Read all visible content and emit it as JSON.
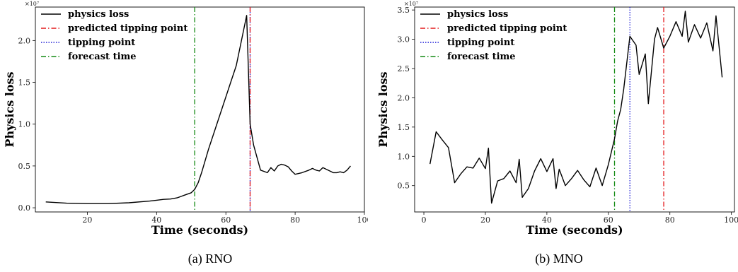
{
  "legend_labels": {
    "physics_loss": "physics loss",
    "predicted_tipping_point": "predicted tipping point",
    "tipping_point": "tipping point",
    "forecast_time": "forecast time"
  },
  "colors": {
    "physics_loss": "#000000",
    "predicted_tipping_point": "#e41a1c",
    "tipping_point": "#1f1fd6",
    "forecast_time": "#138a13"
  },
  "panels": [
    {
      "caption": "(a) RNO",
      "xlabel": "Time (seconds)",
      "ylabel": "Physics loss",
      "exponent": "×10⁷"
    },
    {
      "caption": "(b) MNO",
      "xlabel": "Time (seconds)",
      "ylabel": "Physics loss",
      "exponent": "×10⁷"
    }
  ],
  "chart_data": [
    {
      "type": "line",
      "title": "",
      "xlabel": "Time (seconds)",
      "ylabel": "Physics loss",
      "y_scale_multiplier": "1e7",
      "xlim": [
        5,
        100
      ],
      "ylim": [
        -0.05,
        2.4
      ],
      "xticks": [
        20,
        40,
        60,
        80,
        100
      ],
      "yticks": [
        0.0,
        0.5,
        1.0,
        1.5,
        2.0
      ],
      "ytick_labels": [
        "0.0",
        "0.5",
        "1.0",
        "1.5",
        "2.0"
      ],
      "grid": false,
      "legend": "top-left",
      "series": [
        {
          "name": "physics loss",
          "style": "solid",
          "x": [
            8,
            14,
            20,
            26,
            32,
            38,
            40,
            42,
            44,
            46,
            48,
            50,
            51,
            52,
            53,
            55,
            57,
            59,
            61,
            63,
            65,
            66,
            67,
            68,
            70,
            72,
            73,
            74,
            75,
            76,
            77,
            78,
            79,
            80,
            81,
            82,
            84,
            85,
            86,
            87,
            88,
            89,
            90,
            91,
            92,
            93,
            94,
            95,
            96
          ],
          "values": [
            0.07,
            0.055,
            0.05,
            0.05,
            0.06,
            0.08,
            0.09,
            0.1,
            0.105,
            0.12,
            0.15,
            0.18,
            0.22,
            0.3,
            0.42,
            0.7,
            0.95,
            1.2,
            1.45,
            1.7,
            2.1,
            2.3,
            1.0,
            0.75,
            0.45,
            0.42,
            0.48,
            0.44,
            0.5,
            0.52,
            0.51,
            0.49,
            0.44,
            0.4,
            0.41,
            0.42,
            0.45,
            0.47,
            0.45,
            0.44,
            0.48,
            0.46,
            0.44,
            0.42,
            0.42,
            0.43,
            0.42,
            0.45,
            0.5
          ]
        }
      ],
      "vlines": [
        {
          "name": "forecast time",
          "x": 51,
          "style": "dashdot"
        },
        {
          "name": "tipping point",
          "x": 67,
          "style": "dotted"
        },
        {
          "name": "predicted tipping point",
          "x": 67,
          "style": "dashdot"
        }
      ]
    },
    {
      "type": "line",
      "title": "",
      "xlabel": "Time (seconds)",
      "ylabel": "Physics loss",
      "y_scale_multiplier": "1e7",
      "xlim": [
        -3,
        101
      ],
      "ylim": [
        0.05,
        3.55
      ],
      "xticks": [
        0,
        20,
        40,
        60,
        80,
        100
      ],
      "yticks": [
        0.5,
        1.0,
        1.5,
        2.0,
        2.5,
        3.0,
        3.5
      ],
      "ytick_labels": [
        "0.5",
        "1.0",
        "1.5",
        "2.0",
        "2.5",
        "3.0",
        "3.5"
      ],
      "grid": false,
      "legend": "top-left",
      "series": [
        {
          "name": "physics loss",
          "style": "solid",
          "x": [
            2,
            4,
            6,
            8,
            10,
            12,
            14,
            16,
            18,
            20,
            21,
            22,
            24,
            26,
            28,
            30,
            31,
            32,
            34,
            36,
            38,
            40,
            42,
            43,
            44,
            46,
            48,
            50,
            52,
            54,
            56,
            58,
            60,
            62,
            63,
            64,
            65,
            67,
            69,
            70,
            72,
            73,
            75,
            76,
            78,
            80,
            82,
            84,
            85,
            86,
            88,
            90,
            92,
            94,
            95,
            97
          ],
          "values": [
            0.87,
            1.42,
            1.28,
            1.15,
            0.55,
            0.7,
            0.82,
            0.8,
            0.97,
            0.79,
            1.14,
            0.2,
            0.58,
            0.62,
            0.75,
            0.55,
            0.95,
            0.3,
            0.45,
            0.75,
            0.96,
            0.74,
            0.96,
            0.45,
            0.78,
            0.5,
            0.62,
            0.76,
            0.6,
            0.48,
            0.8,
            0.5,
            0.86,
            1.3,
            1.6,
            1.8,
            2.15,
            3.05,
            2.9,
            2.4,
            2.75,
            1.9,
            3.0,
            3.2,
            2.85,
            3.05,
            3.3,
            3.05,
            3.48,
            2.95,
            3.25,
            3.02,
            3.28,
            2.8,
            3.4,
            2.35
          ]
        }
      ],
      "vlines": [
        {
          "name": "forecast time",
          "x": 62,
          "style": "dashdot"
        },
        {
          "name": "tipping point",
          "x": 67,
          "style": "dotted"
        },
        {
          "name": "predicted tipping point",
          "x": 78,
          "style": "dashdot"
        }
      ]
    }
  ]
}
